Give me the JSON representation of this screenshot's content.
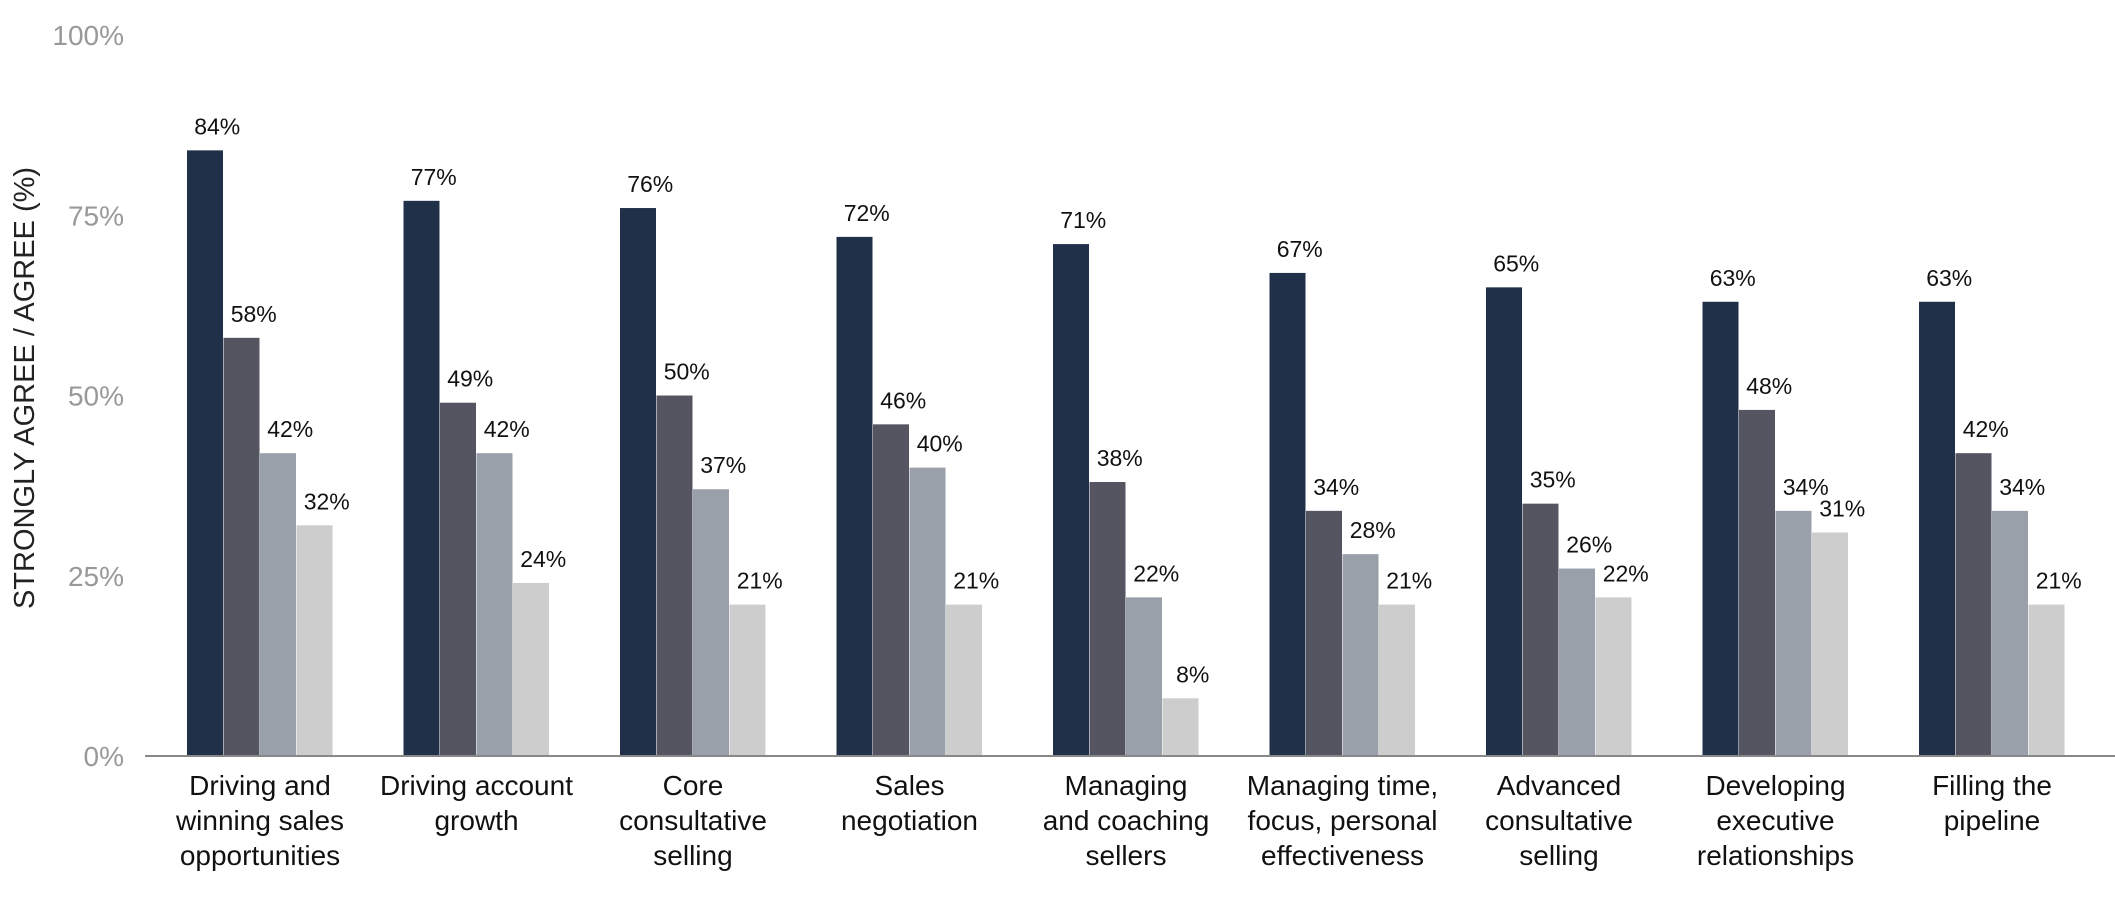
{
  "chart_data": {
    "type": "bar",
    "title": "",
    "xlabel": "",
    "ylabel": "STRONGLY AGREE / AGREE (%)",
    "ylim": [
      0,
      100
    ],
    "yticks": [
      "0%",
      "25%",
      "50%",
      "75%",
      "100%"
    ],
    "grid": false,
    "categories": [
      [
        "Driving and",
        "winning sales",
        "opportunities"
      ],
      [
        "Driving account",
        "growth"
      ],
      [
        "Core",
        "consultative",
        "selling"
      ],
      [
        "Sales",
        "negotiation"
      ],
      [
        "Managing",
        "and coaching",
        "sellers"
      ],
      [
        "Managing time,",
        "focus, personal",
        "effectiveness"
      ],
      [
        "Advanced",
        "consultative",
        "selling"
      ],
      [
        "Developing",
        "executive",
        "relationships"
      ],
      [
        "Filling the",
        "pipeline"
      ]
    ],
    "series": [
      {
        "color": "#1f3048",
        "values": [
          84,
          77,
          76,
          72,
          71,
          67,
          65,
          63,
          63
        ]
      },
      {
        "color": "#555561",
        "values": [
          58,
          49,
          50,
          46,
          38,
          34,
          35,
          48,
          42
        ]
      },
      {
        "color": "#9aa0aa",
        "values": [
          42,
          42,
          37,
          40,
          22,
          28,
          26,
          34,
          34
        ]
      },
      {
        "color": "#cdcdcd",
        "values": [
          32,
          24,
          21,
          21,
          8,
          21,
          22,
          31,
          21
        ]
      }
    ],
    "axis_color": "#888888"
  }
}
